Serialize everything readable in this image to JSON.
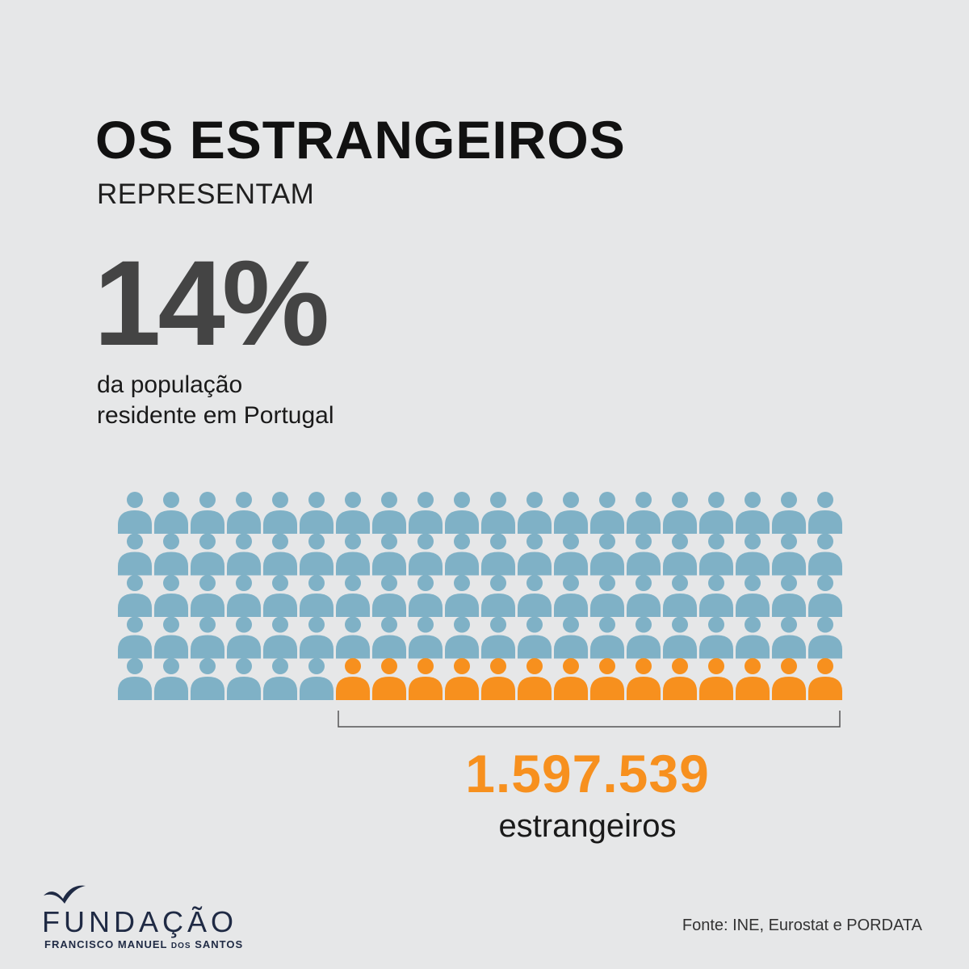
{
  "header": {
    "title": "OS ESTRANGEIROS",
    "subtitle": "REPRESENTAM",
    "percent": "14%",
    "desc_line1": "da população",
    "desc_line2": "residente em Portugal"
  },
  "chart_data": {
    "type": "pictogram",
    "rows": 5,
    "columns": 20,
    "total_icons": 100,
    "highlighted_icons": 14,
    "highlight_value": "1.597.539",
    "highlight_label": "estrangeiros",
    "colors": {
      "base": "#7fb1c6",
      "highlight": "#f7901e",
      "bracket": "#555555"
    }
  },
  "footer": {
    "logo_word": "FUNDAÇÃO",
    "logo_sub_a": "FRANCISCO MANUEL",
    "logo_sub_b": "DOS",
    "logo_sub_c": "SANTOS",
    "source": "Fonte: INE, Eurostat e PORDATA"
  },
  "icons": {
    "logo": "bird-icon",
    "person": "person-icon"
  }
}
